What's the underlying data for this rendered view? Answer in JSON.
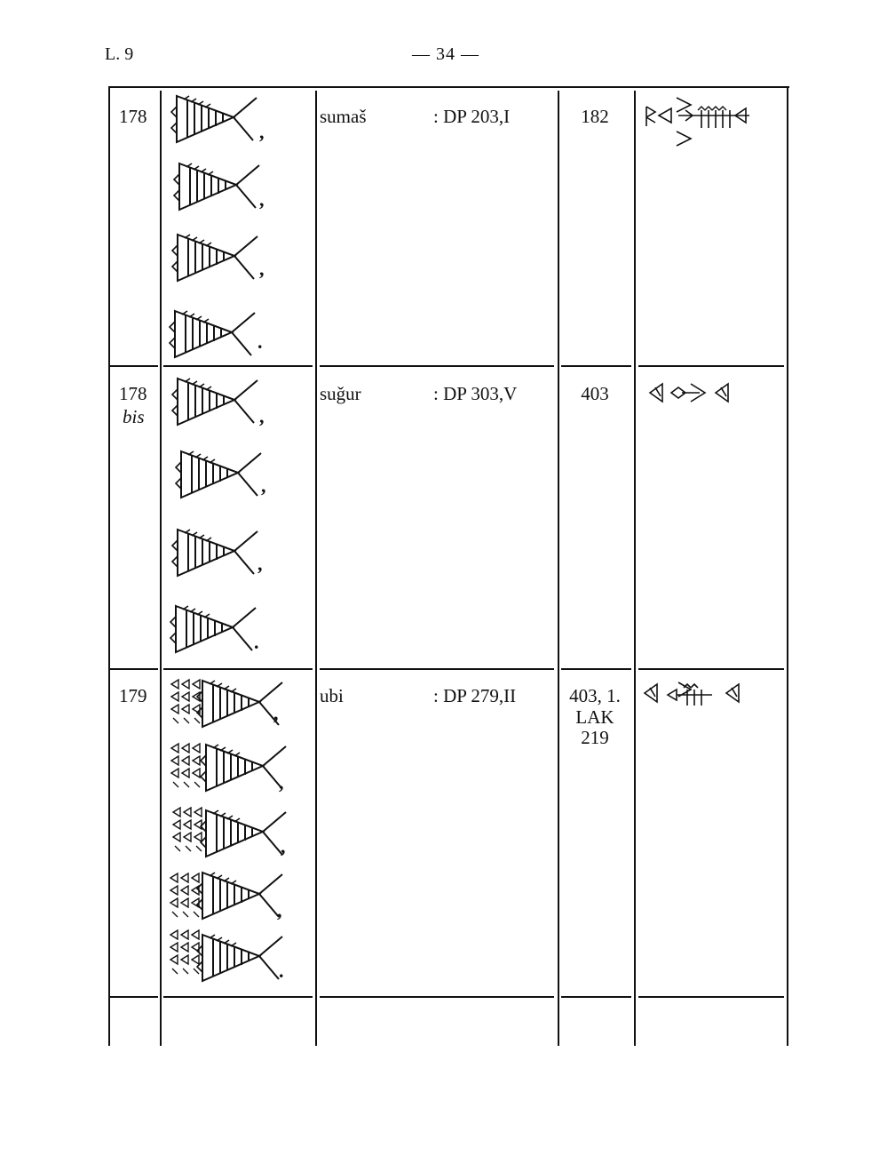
{
  "header": {
    "plate": "L. 9",
    "page": "— 34 —"
  },
  "rows": [
    {
      "number": "178",
      "suffix": "",
      "reading": "sumaš",
      "source": ": DP 203,I",
      "ref": [
        "182"
      ],
      "variants": 4,
      "punct": [
        ",",
        ",",
        ",",
        "."
      ]
    },
    {
      "number": "178",
      "suffix": "bis",
      "reading": "suǧur",
      "source": ": DP 303,V",
      "ref": [
        "403"
      ],
      "variants": 4,
      "punct": [
        ",",
        ",",
        ",",
        "."
      ]
    },
    {
      "number": "179",
      "suffix": "",
      "reading": "ubi",
      "source": ": DP 279,II",
      "ref": [
        "403, 1.",
        "LAK",
        "219"
      ],
      "variants": 5,
      "punct": [
        ",",
        ",",
        ",",
        ",",
        "."
      ]
    }
  ],
  "icons": {
    "archaic_sign": "fish-sign-icon",
    "neo_assyrian_sign": "cuneiform-wedges-icon"
  }
}
